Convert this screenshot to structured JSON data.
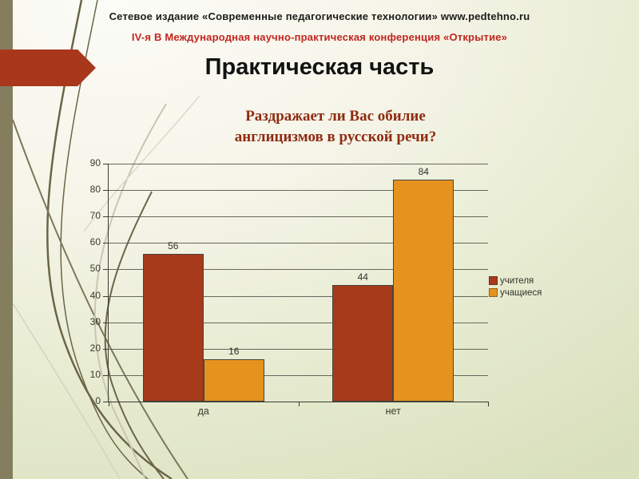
{
  "slide": {
    "header_line1": "Сетевое издание «Современные педагогические технологии» www.pedtehno.ru",
    "header_line2": "IV-я В Международная научно-практическая конференция «Открытие»",
    "title": "Практическая часть"
  },
  "chart_data": {
    "type": "bar",
    "title": "Раздражает ли Вас обилие англицизмов в русской речи?",
    "title_lines": [
      "Раздражает ли Вас обилие",
      "англицизмов в русской речи?"
    ],
    "categories": [
      "да",
      "нет"
    ],
    "series": [
      {
        "name": "учителя",
        "color": "#a63a1b",
        "values": [
          56,
          44
        ]
      },
      {
        "name": "учащиеся",
        "color": "#e5921f",
        "values": [
          16,
          84
        ]
      }
    ],
    "ylim": [
      0,
      90
    ],
    "ytick_step": 10,
    "grid": true,
    "legend_position": "right",
    "value_labels": true,
    "xlabel": "",
    "ylabel": ""
  },
  "colors": {
    "background_top": "#fcfcf8",
    "background_bottom": "#d9e0bc",
    "left_bar_olive": "#847e5e",
    "arrow_red": "#a8371c",
    "subtitle_red": "#c3251e",
    "chart_title_red": "#8f2a12",
    "series_teachers": "#a63a1b",
    "series_students": "#e5921f"
  }
}
